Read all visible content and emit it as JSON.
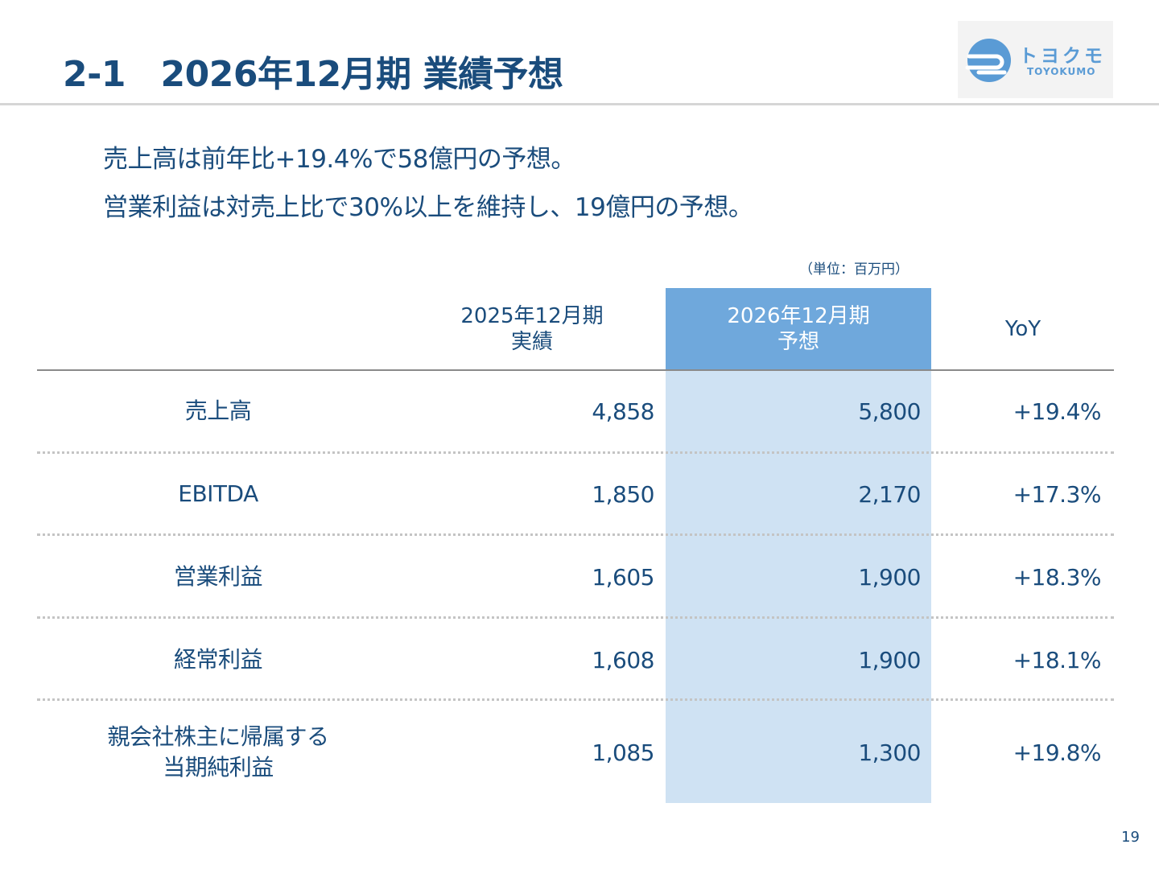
{
  "title": "2-1　2026年12月期 業績予想",
  "logo": {
    "jp": "トヨクモ",
    "en": "TOYOKUMO"
  },
  "lead": [
    "売上高は前年比+19.4%で58億円の予想。",
    "営業利益は対売上比で30%以上を維持し、19億円の予想。"
  ],
  "unit": "（単位：百万円）",
  "table": {
    "headers": {
      "prev": [
        "2025年12月期",
        "実績"
      ],
      "fcst": [
        "2026年12月期",
        "予想"
      ],
      "yoy": "YoY"
    },
    "rows": [
      {
        "label": [
          "売上高"
        ],
        "prev": "4,858",
        "fcst": "5,800",
        "yoy": "+19.4%"
      },
      {
        "label": [
          "EBITDA"
        ],
        "prev": "1,850",
        "fcst": "2,170",
        "yoy": "+17.3%"
      },
      {
        "label": [
          "営業利益"
        ],
        "prev": "1,605",
        "fcst": "1,900",
        "yoy": "+18.3%"
      },
      {
        "label": [
          "経常利益"
        ],
        "prev": "1,608",
        "fcst": "1,900",
        "yoy": "+18.1%"
      },
      {
        "label": [
          "親会社株主に帰属する",
          "当期純利益"
        ],
        "prev": "1,085",
        "fcst": "1,300",
        "yoy": "+19.8%"
      }
    ]
  },
  "page_number": "19",
  "colors": {
    "text": "#1a4c7c",
    "highlight_header": "#6fa8dc",
    "highlight_body": "#cfe2f3",
    "logo_blue": "#5a9bd5"
  }
}
